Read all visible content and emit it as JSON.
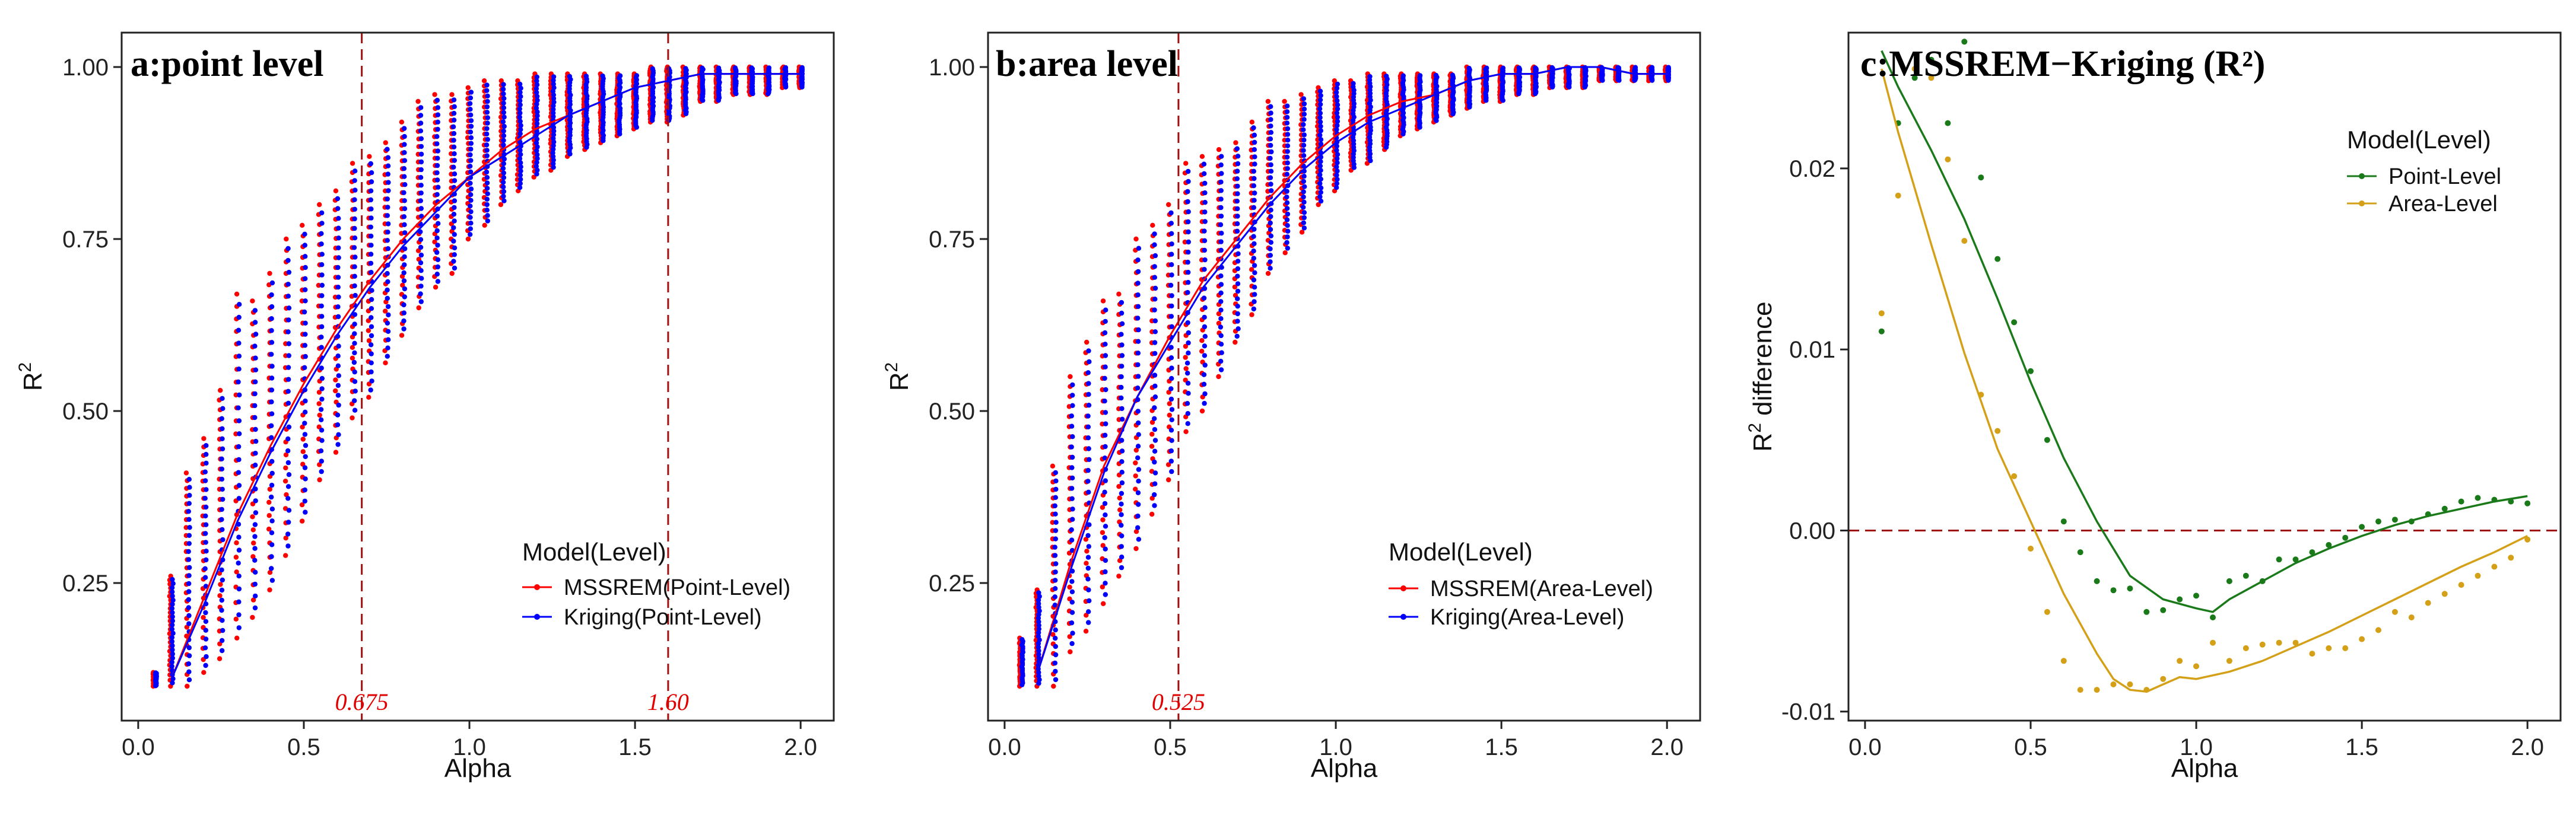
{
  "chart_data": [
    {
      "type": "scatter",
      "title": "a:point level",
      "xlabel": "Alpha",
      "ylabel": "R2",
      "xlim": [
        -0.05,
        2.1
      ],
      "ylim": [
        0.05,
        1.05
      ],
      "xticks": [
        0.0,
        0.5,
        1.0,
        1.5,
        2.0
      ],
      "xtick_labels": [
        "0.0",
        "0.5",
        "1.0",
        "1.5",
        "2.0"
      ],
      "yticks": [
        0.25,
        0.5,
        0.75,
        1.0
      ],
      "ytick_labels": [
        "0.25",
        "0.50",
        "0.75",
        "1.00"
      ],
      "ref_lines": [
        {
          "x": 0.675,
          "label": "0.675"
        },
        {
          "x": 1.6,
          "label": "1.60"
        }
      ],
      "legend_title": "Model(Level)",
      "legend_position": "bottom-right",
      "series": [
        {
          "name": "MSSREM(Point-Level)",
          "color": "#ff0000"
        },
        {
          "name": "Kriging(Point-Level)",
          "color": "#0000ff"
        }
      ],
      "x": [
        0.05,
        0.1,
        0.15,
        0.2,
        0.25,
        0.3,
        0.35,
        0.4,
        0.45,
        0.5,
        0.55,
        0.6,
        0.65,
        0.7,
        0.75,
        0.8,
        0.85,
        0.9,
        0.95,
        1.0,
        1.05,
        1.1,
        1.15,
        1.2,
        1.25,
        1.3,
        1.35,
        1.4,
        1.45,
        1.5,
        1.55,
        1.6,
        1.65,
        1.7,
        1.75,
        1.8,
        1.85,
        1.9,
        1.95,
        2.0
      ],
      "point_min": [
        0.1,
        0.1,
        0.1,
        0.12,
        0.14,
        0.17,
        0.2,
        0.24,
        0.29,
        0.34,
        0.4,
        0.44,
        0.49,
        0.52,
        0.57,
        0.61,
        0.65,
        0.68,
        0.7,
        0.75,
        0.77,
        0.8,
        0.82,
        0.84,
        0.85,
        0.87,
        0.88,
        0.89,
        0.9,
        0.91,
        0.92,
        0.92,
        0.93,
        0.95,
        0.95,
        0.96,
        0.96,
        0.96,
        0.97,
        0.97
      ],
      "point_max": [
        0.12,
        0.26,
        0.41,
        0.46,
        0.53,
        0.67,
        0.66,
        0.7,
        0.75,
        0.77,
        0.8,
        0.82,
        0.86,
        0.87,
        0.89,
        0.92,
        0.95,
        0.96,
        0.96,
        0.97,
        0.98,
        0.98,
        0.98,
        0.99,
        0.99,
        0.99,
        0.99,
        0.99,
        0.99,
        0.99,
        1.0,
        1.0,
        1.0,
        1.0,
        1.0,
        1.0,
        1.0,
        1.0,
        1.0,
        1.0
      ],
      "fit_x": [
        0.1,
        0.2,
        0.3,
        0.4,
        0.5,
        0.6,
        0.7,
        0.8,
        0.9,
        1.0,
        1.1,
        1.2,
        1.3,
        1.4,
        1.5,
        1.6,
        1.7,
        1.8,
        1.9,
        2.0
      ],
      "fit_mssrem": [
        0.11,
        0.23,
        0.35,
        0.45,
        0.54,
        0.62,
        0.69,
        0.75,
        0.8,
        0.84,
        0.88,
        0.91,
        0.93,
        0.95,
        0.97,
        0.98,
        0.99,
        0.99,
        0.99,
        0.99
      ],
      "fit_kriging": [
        0.11,
        0.22,
        0.34,
        0.44,
        0.53,
        0.61,
        0.68,
        0.74,
        0.79,
        0.84,
        0.87,
        0.9,
        0.93,
        0.95,
        0.97,
        0.98,
        0.99,
        0.99,
        0.99,
        0.99
      ]
    },
    {
      "type": "scatter",
      "title": "b:area level",
      "xlabel": "Alpha",
      "ylabel": "R2",
      "xlim": [
        -0.05,
        2.1
      ],
      "ylim": [
        0.05,
        1.05
      ],
      "xticks": [
        0.0,
        0.5,
        1.0,
        1.5,
        2.0
      ],
      "xtick_labels": [
        "0.0",
        "0.5",
        "1.0",
        "1.5",
        "2.0"
      ],
      "yticks": [
        0.25,
        0.5,
        0.75,
        1.0
      ],
      "ytick_labels": [
        "0.25",
        "0.50",
        "0.75",
        "1.00"
      ],
      "ref_lines": [
        {
          "x": 0.525,
          "label": "0.525"
        }
      ],
      "legend_title": "Model(Level)",
      "legend_position": "bottom-right",
      "series": [
        {
          "name": "MSSREM(Area-Level)",
          "color": "#ff0000"
        },
        {
          "name": "Kriging(Area-Level)",
          "color": "#0000ff"
        }
      ],
      "x": [
        0.05,
        0.1,
        0.15,
        0.2,
        0.25,
        0.3,
        0.35,
        0.4,
        0.45,
        0.5,
        0.55,
        0.6,
        0.65,
        0.7,
        0.75,
        0.8,
        0.85,
        0.9,
        0.95,
        1.0,
        1.05,
        1.1,
        1.15,
        1.2,
        1.25,
        1.3,
        1.35,
        1.4,
        1.45,
        1.5,
        1.55,
        1.6,
        1.65,
        1.7,
        1.75,
        1.8,
        1.85,
        1.9,
        1.95,
        2.0
      ],
      "point_min": [
        0.1,
        0.1,
        0.1,
        0.15,
        0.18,
        0.22,
        0.26,
        0.3,
        0.35,
        0.4,
        0.47,
        0.5,
        0.55,
        0.6,
        0.64,
        0.7,
        0.73,
        0.76,
        0.8,
        0.82,
        0.85,
        0.86,
        0.88,
        0.9,
        0.91,
        0.92,
        0.93,
        0.94,
        0.95,
        0.95,
        0.96,
        0.96,
        0.97,
        0.97,
        0.97,
        0.98,
        0.98,
        0.98,
        0.98,
        0.98
      ],
      "point_max": [
        0.17,
        0.24,
        0.42,
        0.55,
        0.6,
        0.66,
        0.67,
        0.75,
        0.77,
        0.8,
        0.86,
        0.87,
        0.88,
        0.89,
        0.92,
        0.95,
        0.95,
        0.96,
        0.97,
        0.98,
        0.98,
        0.99,
        0.99,
        0.99,
        0.99,
        0.99,
        0.99,
        1.0,
        1.0,
        1.0,
        1.0,
        1.0,
        1.0,
        1.0,
        1.0,
        1.0,
        1.0,
        1.0,
        1.0,
        1.0
      ],
      "fit_x": [
        0.1,
        0.2,
        0.3,
        0.4,
        0.5,
        0.6,
        0.7,
        0.8,
        0.9,
        1.0,
        1.1,
        1.2,
        1.3,
        1.4,
        1.5,
        1.6,
        1.7,
        1.8,
        1.9,
        2.0
      ],
      "fit_mssrem": [
        0.12,
        0.28,
        0.42,
        0.52,
        0.61,
        0.69,
        0.75,
        0.81,
        0.86,
        0.9,
        0.93,
        0.95,
        0.96,
        0.98,
        0.99,
        0.99,
        1.0,
        1.0,
        0.99,
        0.99
      ],
      "fit_kriging": [
        0.12,
        0.27,
        0.41,
        0.52,
        0.6,
        0.68,
        0.74,
        0.8,
        0.85,
        0.89,
        0.92,
        0.94,
        0.96,
        0.98,
        0.99,
        0.99,
        1.0,
        1.0,
        0.99,
        0.99
      ]
    },
    {
      "type": "line",
      "title": "c:MSSREM−Kriging (R²)",
      "xlabel": "Alpha",
      "ylabel": "R2 difference",
      "xlim": [
        -0.05,
        2.1
      ],
      "ylim": [
        -0.0105,
        0.0275
      ],
      "xticks": [
        0.0,
        0.5,
        1.0,
        1.5,
        2.0
      ],
      "xtick_labels": [
        "0.0",
        "0.5",
        "1.0",
        "1.5",
        "2.0"
      ],
      "yticks": [
        -0.01,
        0.0,
        0.01,
        0.02
      ],
      "ytick_labels": [
        "-0.01",
        "0.00",
        "0.01",
        "0.02"
      ],
      "ref_line_y": 0.0,
      "legend_title": "Model(Level)",
      "legend_position": "top-right",
      "series": [
        {
          "name": "Point-Level",
          "color": "#1a7a1a",
          "x": [
            0.05,
            0.1,
            0.15,
            0.2,
            0.25,
            0.3,
            0.35,
            0.4,
            0.45,
            0.5,
            0.55,
            0.6,
            0.65,
            0.7,
            0.75,
            0.8,
            0.85,
            0.9,
            0.95,
            1.0,
            1.05,
            1.1,
            1.15,
            1.2,
            1.25,
            1.3,
            1.35,
            1.4,
            1.45,
            1.5,
            1.55,
            1.6,
            1.65,
            1.7,
            1.75,
            1.8,
            1.85,
            1.9,
            1.95,
            2.0
          ],
          "points": [
            0.011,
            0.0225,
            0.025,
            0.026,
            0.0225,
            0.027,
            0.0195,
            0.015,
            0.0115,
            0.0088,
            0.005,
            0.0005,
            -0.0012,
            -0.0028,
            -0.0033,
            -0.0032,
            -0.0045,
            -0.0044,
            -0.0038,
            -0.0036,
            -0.0048,
            -0.0028,
            -0.0025,
            -0.0028,
            -0.0016,
            -0.0016,
            -0.0012,
            -0.0008,
            -0.0004,
            0.0002,
            0.0005,
            0.0006,
            0.0005,
            0.0009,
            0.0012,
            0.0016,
            0.0018,
            0.0017,
            0.0016,
            0.0015
          ],
          "fit_x": [
            0.05,
            0.1,
            0.2,
            0.3,
            0.4,
            0.5,
            0.6,
            0.7,
            0.8,
            0.9,
            1.0,
            1.05,
            1.1,
            1.2,
            1.3,
            1.4,
            1.5,
            1.6,
            1.7,
            1.8,
            1.9,
            2.0
          ],
          "fit": [
            0.0265,
            0.0245,
            0.021,
            0.0172,
            0.0128,
            0.0082,
            0.004,
            0.0005,
            -0.0025,
            -0.0038,
            -0.0043,
            -0.0045,
            -0.0038,
            -0.0028,
            -0.0018,
            -0.001,
            -0.0003,
            0.0003,
            0.0008,
            0.0012,
            0.0016,
            0.0019
          ]
        },
        {
          "name": "Area-Level",
          "color": "#d4a017",
          "x": [
            0.05,
            0.1,
            0.15,
            0.2,
            0.25,
            0.3,
            0.35,
            0.4,
            0.45,
            0.5,
            0.55,
            0.6,
            0.65,
            0.7,
            0.75,
            0.8,
            0.85,
            0.9,
            0.95,
            1.0,
            1.05,
            1.1,
            1.15,
            1.2,
            1.25,
            1.3,
            1.35,
            1.4,
            1.45,
            1.5,
            1.55,
            1.6,
            1.65,
            1.7,
            1.75,
            1.8,
            1.85,
            1.9,
            1.95,
            2.0
          ],
          "points": [
            0.012,
            0.0185,
            0.0255,
            0.025,
            0.0205,
            0.016,
            0.0075,
            0.0055,
            0.003,
            -0.001,
            -0.0045,
            -0.0072,
            -0.0088,
            -0.0088,
            -0.0085,
            -0.0085,
            -0.0088,
            -0.0082,
            -0.0072,
            -0.0075,
            -0.0062,
            -0.0072,
            -0.0065,
            -0.0063,
            -0.0062,
            -0.0062,
            -0.0068,
            -0.0065,
            -0.0065,
            -0.006,
            -0.0055,
            -0.0045,
            -0.0048,
            -0.004,
            -0.0035,
            -0.003,
            -0.0025,
            -0.002,
            -0.0015,
            -0.0005
          ],
          "fit_x": [
            0.05,
            0.1,
            0.2,
            0.3,
            0.4,
            0.5,
            0.6,
            0.7,
            0.75,
            0.8,
            0.85,
            0.9,
            0.95,
            1.0,
            1.1,
            1.2,
            1.3,
            1.4,
            1.5,
            1.6,
            1.7,
            1.8,
            1.9,
            2.0
          ],
          "fit": [
            0.0255,
            0.022,
            0.0158,
            0.0098,
            0.0045,
            0.0005,
            -0.0035,
            -0.0068,
            -0.0082,
            -0.0088,
            -0.0089,
            -0.0085,
            -0.0081,
            -0.0082,
            -0.0078,
            -0.0072,
            -0.0064,
            -0.0056,
            -0.0047,
            -0.0038,
            -0.0029,
            -0.002,
            -0.0012,
            -0.0003
          ]
        }
      ]
    }
  ]
}
